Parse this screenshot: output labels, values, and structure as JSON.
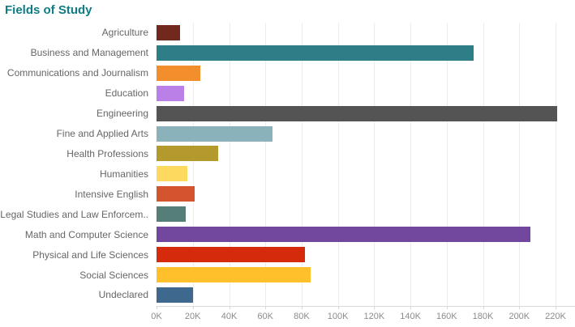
{
  "title_color": "#0F7B84",
  "chart_data": {
    "type": "bar",
    "orientation": "horizontal",
    "title": "Fields of Study",
    "categories": [
      "Agriculture",
      "Business and Management",
      "Communications and Journalism",
      "Education",
      "Engineering",
      "Fine and Applied Arts",
      "Health Professions",
      "Humanities",
      "Intensive English",
      "Legal Studies and Law Enforcem..",
      "Math and Computer Science",
      "Physical and Life Sciences",
      "Social Sciences",
      "Undeclared"
    ],
    "values": [
      13000,
      175000,
      24000,
      15000,
      221000,
      64000,
      34000,
      17000,
      21000,
      16000,
      206000,
      82000,
      85000,
      20000
    ],
    "colors": [
      "#71291D",
      "#2E7E87",
      "#F28E2B",
      "#BB80E8",
      "#545454",
      "#8AB2BA",
      "#B49A2C",
      "#FDD95F",
      "#D4542D",
      "#547E77",
      "#71489E",
      "#D62A0D",
      "#FFC02C",
      "#3E688D"
    ],
    "xlabel": "",
    "ylabel": "",
    "xlim": [
      0,
      232000
    ],
    "axis": {
      "min": 0,
      "max": 220000,
      "step": 20000,
      "tick_labels": [
        "0K",
        "20K",
        "40K",
        "60K",
        "80K",
        "100K",
        "120K",
        "140K",
        "160K",
        "180K",
        "200K",
        "220K"
      ]
    },
    "grid": true,
    "legend": false,
    "label_color": "#666666",
    "tick_color": "#8B8B8B",
    "gridline_color": "#ECECEC",
    "axisline_color": "#D8D8D8"
  }
}
